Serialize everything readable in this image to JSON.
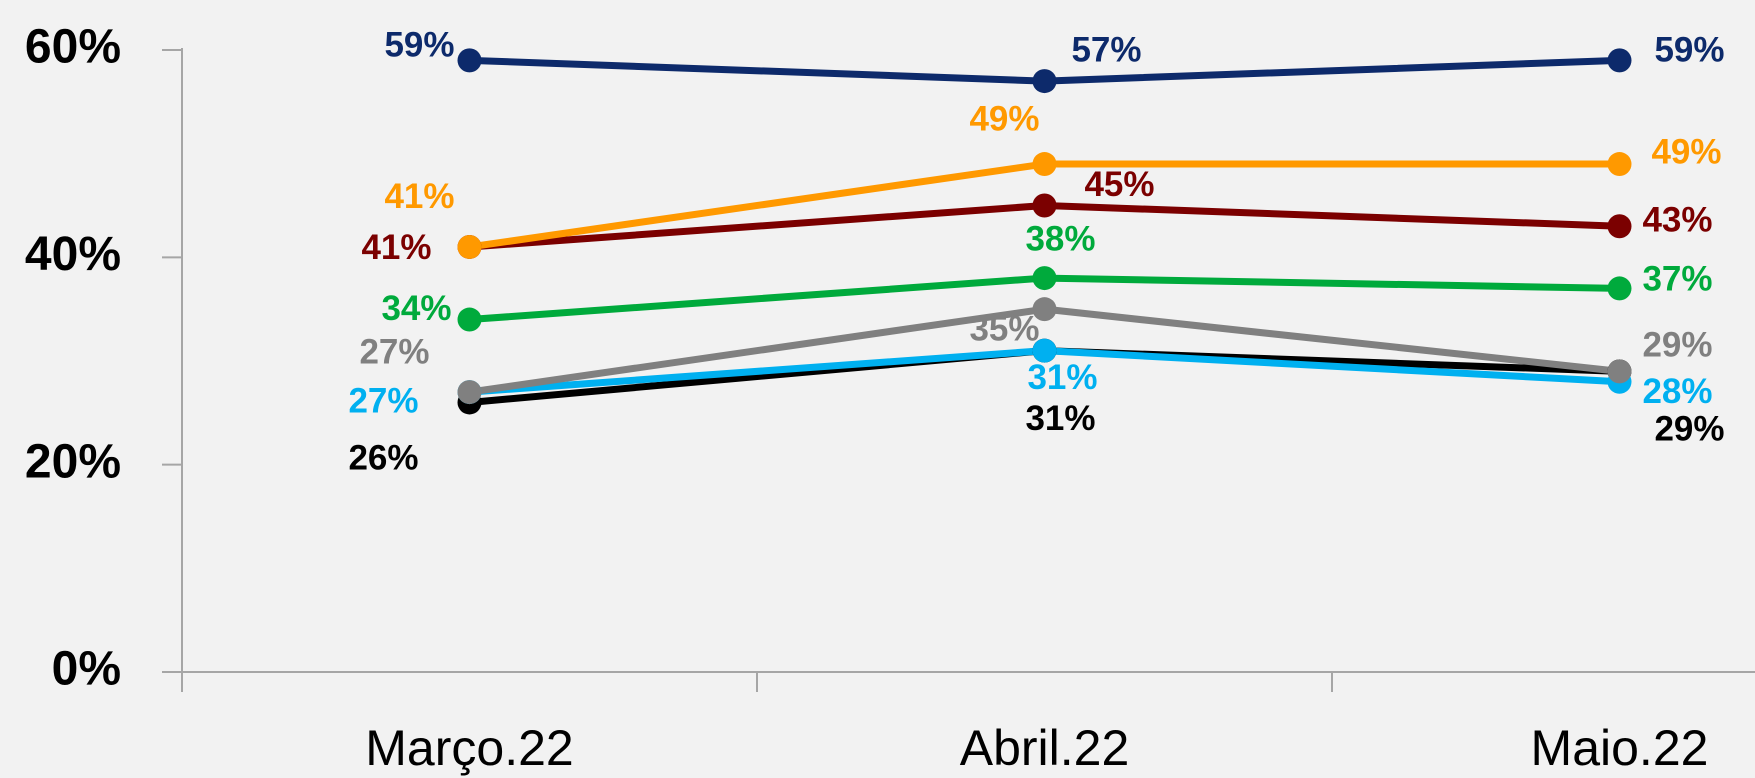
{
  "chart_data": {
    "type": "line",
    "categories": [
      "Março.22",
      "Abril.22",
      "Maio.22"
    ],
    "series": [
      {
        "color": "#000000",
        "values": [
          26,
          31,
          29
        ],
        "value_labels": [
          "26%",
          "31%",
          "29%"
        ]
      },
      {
        "color": "#00b0f0",
        "values": [
          27,
          31,
          28
        ],
        "value_labels": [
          "27%",
          "31%",
          "28%"
        ]
      },
      {
        "color": "#808080",
        "values": [
          27,
          35,
          29
        ],
        "value_labels": [
          "27%",
          "35%",
          "29%"
        ]
      },
      {
        "color": "#00aa3c",
        "values": [
          34,
          38,
          37
        ],
        "value_labels": [
          "34%",
          "38%",
          "37%"
        ]
      },
      {
        "color": "#7b0000",
        "values": [
          41,
          45,
          43
        ],
        "value_labels": [
          "41%",
          "45%",
          "43%"
        ]
      },
      {
        "color": "#ff9900",
        "values": [
          41,
          49,
          49
        ],
        "value_labels": [
          "41%",
          "49%",
          "49%"
        ]
      },
      {
        "color": "#0d2a6b",
        "values": [
          59,
          57,
          59
        ],
        "value_labels": [
          "59%",
          "57%",
          "59%"
        ]
      }
    ],
    "ylim": [
      0,
      60
    ],
    "yticks": [
      {
        "value": 0,
        "label": "0%"
      },
      {
        "value": 20,
        "label": "20%"
      },
      {
        "value": 40,
        "label": "40%"
      },
      {
        "value": 60,
        "label": "60%"
      }
    ]
  }
}
